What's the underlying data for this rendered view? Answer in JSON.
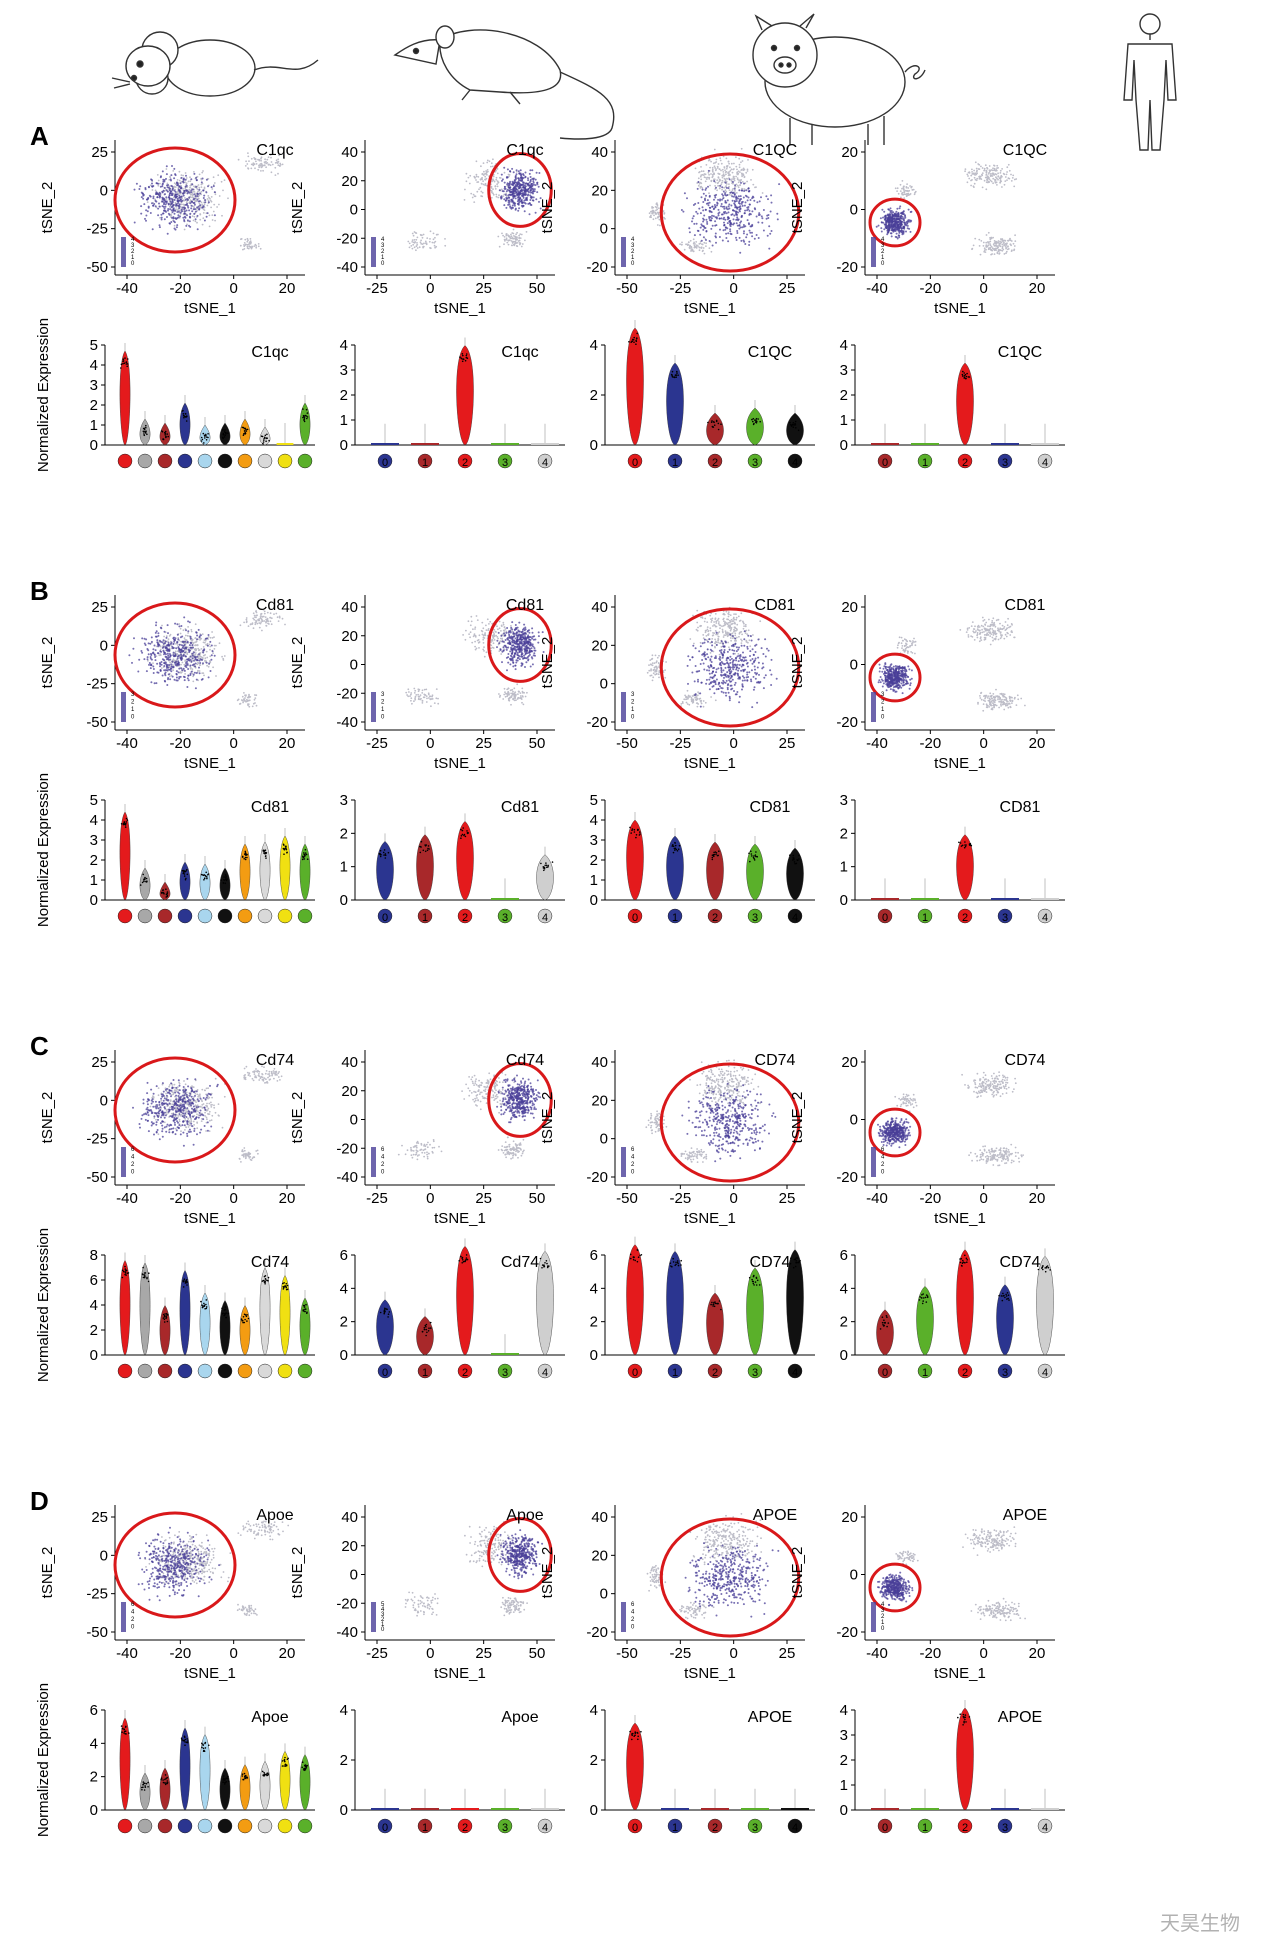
{
  "species_icons": [
    "mouse-icon",
    "rat-icon",
    "pig-icon",
    "human-icon"
  ],
  "panel_letters": [
    "A",
    "B",
    "C",
    "D"
  ],
  "axis_labels": {
    "x": "tSNE_1",
    "y": "tSNE_2",
    "violin_y": "Normalized Expression"
  },
  "colors": {
    "highlight": "#d9181a",
    "grey": "#c8c8c8",
    "purple": "#4a3f98",
    "mouse_clusters": [
      "#e41a1c",
      "#a8a8a8",
      "#a8282a",
      "#2b3590",
      "#a9d6ee",
      "#111111",
      "#f39c12",
      "#d9d9d9",
      "#f0e012",
      "#5ab02a"
    ],
    "rat_clusters": [
      "#2b3590",
      "#a8282a",
      "#e41a1c",
      "#5ab02a",
      "#cfcfcf"
    ],
    "pig_clusters": [
      "#e41a1c",
      "#2b3590",
      "#a8282a",
      "#5ab02a",
      "#111111"
    ],
    "human_clusters": [
      "#a8282a",
      "#5ab02a",
      "#e41a1c",
      "#2b3590",
      "#cfcfcf"
    ]
  },
  "cluster_labels": [
    "0",
    "1",
    "2",
    "3",
    "4"
  ],
  "chart_data": [
    {
      "panel": "A",
      "gene": "C1qc",
      "species": "mouse",
      "type": "scatter",
      "tsne_xticks": [
        "-40",
        "-20",
        "0",
        "20"
      ],
      "tsne_yticks": [
        "25",
        "0",
        "-25",
        "-50"
      ],
      "tsne_legend": [
        "4",
        "3",
        "2",
        "1",
        "0"
      ],
      "violin_yticks": [
        "5",
        "4",
        "3",
        "2",
        "1",
        "0"
      ],
      "violin_values": [
        4.1,
        0.7,
        0.5,
        1.5,
        0.4,
        0.5,
        0.7,
        0.3,
        0.1,
        1.5
      ]
    },
    {
      "panel": "A",
      "gene": "C1qc",
      "species": "rat",
      "type": "scatter",
      "tsne_xticks": [
        "-25",
        "0",
        "25",
        "50"
      ],
      "tsne_yticks": [
        "40",
        "20",
        "0",
        "-20",
        "-40"
      ],
      "tsne_legend": [
        "4",
        "3",
        "2",
        "1",
        "0"
      ],
      "violin_yticks": [
        "4",
        "3",
        "2",
        "1",
        "0"
      ],
      "violin_values": [
        0.05,
        0.05,
        3.5,
        0.05,
        0.05
      ]
    },
    {
      "panel": "A",
      "gene": "C1QC",
      "species": "pig",
      "type": "scatter",
      "tsne_xticks": [
        "-50",
        "-25",
        "0",
        "25"
      ],
      "tsne_yticks": [
        "40",
        "20",
        "0",
        "-20"
      ],
      "tsne_legend": [
        "4",
        "3",
        "2",
        "1",
        "0"
      ],
      "violin_yticks": [
        "4",
        "2",
        "0"
      ],
      "violin_values": [
        4.2,
        2.8,
        0.8,
        1.0,
        0.8
      ]
    },
    {
      "panel": "A",
      "gene": "C1QC",
      "species": "human",
      "type": "scatter",
      "tsne_xticks": [
        "-40",
        "-20",
        "0",
        "20"
      ],
      "tsne_yticks": [
        "20",
        "0",
        "-20"
      ],
      "tsne_legend": [
        "4",
        "3",
        "2",
        "1",
        "0"
      ],
      "violin_yticks": [
        "4",
        "3",
        "2",
        "1",
        "0"
      ],
      "violin_values": [
        0.05,
        0.05,
        2.8,
        0.05,
        0.05
      ]
    },
    {
      "panel": "B",
      "gene": "Cd81",
      "species": "mouse",
      "type": "scatter",
      "tsne_xticks": [
        "-40",
        "-20",
        "0",
        "20"
      ],
      "tsne_yticks": [
        "25",
        "0",
        "-25",
        "-50"
      ],
      "tsne_legend": [
        "3",
        "2",
        "1",
        "0"
      ],
      "violin_yticks": [
        "5",
        "4",
        "3",
        "2",
        "1",
        "0"
      ],
      "violin_values": [
        3.8,
        1.0,
        0.3,
        1.3,
        1.2,
        1.0,
        2.2,
        2.3,
        2.6,
        2.2
      ]
    },
    {
      "panel": "B",
      "gene": "Cd81",
      "species": "rat",
      "type": "scatter",
      "tsne_xticks": [
        "-25",
        "0",
        "25",
        "50"
      ],
      "tsne_yticks": [
        "40",
        "20",
        "0",
        "-20",
        "-40"
      ],
      "tsne_legend": [
        "3",
        "2",
        "1",
        "0"
      ],
      "violin_yticks": [
        "3",
        "2",
        "1",
        "0"
      ],
      "violin_values": [
        1.4,
        1.6,
        2.0,
        0.05,
        1.0
      ]
    },
    {
      "panel": "B",
      "gene": "CD81",
      "species": "pig",
      "type": "scatter",
      "tsne_xticks": [
        "-50",
        "-25",
        "0",
        "25"
      ],
      "tsne_yticks": [
        "40",
        "20",
        "0",
        "-20"
      ],
      "tsne_legend": [
        "3",
        "2",
        "1",
        "0"
      ],
      "violin_yticks": [
        "5",
        "4",
        "3",
        "2",
        "1",
        "0"
      ],
      "violin_values": [
        3.4,
        2.6,
        2.3,
        2.2,
        2.0
      ]
    },
    {
      "panel": "B",
      "gene": "CD81",
      "species": "human",
      "type": "scatter",
      "tsne_xticks": [
        "-40",
        "-20",
        "0",
        "20"
      ],
      "tsne_yticks": [
        "20",
        "0",
        "-20"
      ],
      "tsne_legend": [
        "3",
        "2",
        "1",
        "0"
      ],
      "violin_yticks": [
        "3",
        "2",
        "1",
        "0"
      ],
      "violin_values": [
        0.05,
        0.05,
        1.6,
        0.05,
        0.05
      ]
    },
    {
      "panel": "C",
      "gene": "Cd74",
      "species": "mouse",
      "type": "scatter",
      "tsne_xticks": [
        "-40",
        "-20",
        "0",
        "20"
      ],
      "tsne_yticks": [
        "25",
        "0",
        "-25",
        "-50"
      ],
      "tsne_legend": [
        "6",
        "4",
        "2",
        "0"
      ],
      "violin_yticks": [
        "8",
        "6",
        "4",
        "2",
        "0"
      ],
      "violin_values": [
        6.6,
        6.4,
        3.0,
        5.8,
        4.0,
        3.4,
        3.0,
        6.0,
        5.4,
        3.6
      ]
    },
    {
      "panel": "C",
      "gene": "Cd74",
      "species": "rat",
      "type": "scatter",
      "tsne_xticks": [
        "-25",
        "0",
        "25",
        "50"
      ],
      "tsne_yticks": [
        "40",
        "20",
        "0",
        "-20",
        "-40"
      ],
      "tsne_legend": [
        "6",
        "4",
        "2",
        "0"
      ],
      "violin_yticks": [
        "6",
        "4",
        "2",
        "0"
      ],
      "violin_values": [
        2.6,
        1.6,
        5.8,
        0.05,
        5.5
      ]
    },
    {
      "panel": "C",
      "gene": "CD74",
      "species": "pig",
      "type": "scatter",
      "tsne_xticks": [
        "-50",
        "-25",
        "0",
        "25"
      ],
      "tsne_yticks": [
        "40",
        "20",
        "0",
        "-20"
      ],
      "tsne_legend": [
        "6",
        "4",
        "2",
        "0"
      ],
      "violin_yticks": [
        "6",
        "4",
        "2",
        "0"
      ],
      "violin_values": [
        5.9,
        5.5,
        3.0,
        4.5,
        5.6
      ]
    },
    {
      "panel": "C",
      "gene": "CD74",
      "species": "human",
      "type": "scatter",
      "tsne_xticks": [
        "-40",
        "-20",
        "0",
        "20"
      ],
      "tsne_yticks": [
        "20",
        "0",
        "-20"
      ],
      "tsne_legend": [
        "6",
        "4",
        "2",
        "0"
      ],
      "violin_yticks": [
        "6",
        "4",
        "2",
        "0"
      ],
      "violin_values": [
        2.0,
        3.4,
        5.6,
        3.5,
        5.2
      ]
    },
    {
      "panel": "D",
      "gene": "Apoe",
      "species": "mouse",
      "type": "scatter",
      "tsne_xticks": [
        "-40",
        "-20",
        "0",
        "20"
      ],
      "tsne_yticks": [
        "25",
        "0",
        "-25",
        "-50"
      ],
      "tsne_legend": [
        "6",
        "4",
        "2",
        "0"
      ],
      "violin_yticks": [
        "6",
        "4",
        "2",
        "0"
      ],
      "violin_values": [
        4.8,
        1.5,
        1.8,
        4.2,
        3.8,
        1.8,
        2.0,
        2.2,
        2.8,
        2.6
      ]
    },
    {
      "panel": "D",
      "gene": "Apoe",
      "species": "rat",
      "type": "scatter",
      "tsne_xticks": [
        "-25",
        "0",
        "25",
        "50"
      ],
      "tsne_yticks": [
        "40",
        "20",
        "0",
        "-20",
        "-40"
      ],
      "tsne_legend": [
        "5",
        "4",
        "3",
        "2",
        "1",
        "0"
      ],
      "violin_yticks": [
        "4",
        "2",
        "0"
      ],
      "violin_values": [
        0.05,
        0.05,
        0.05,
        0.05,
        0.05
      ]
    },
    {
      "panel": "D",
      "gene": "APOE",
      "species": "pig",
      "type": "scatter",
      "tsne_xticks": [
        "-50",
        "-25",
        "0",
        "25"
      ],
      "tsne_yticks": [
        "40",
        "20",
        "0",
        "-20"
      ],
      "tsne_legend": [
        "6",
        "4",
        "2",
        "0"
      ],
      "violin_yticks": [
        "4",
        "2",
        "0"
      ],
      "violin_values": [
        3.0,
        0.05,
        0.05,
        0.05,
        0.05
      ]
    },
    {
      "panel": "D",
      "gene": "APOE",
      "species": "human",
      "type": "scatter",
      "tsne_xticks": [
        "-40",
        "-20",
        "0",
        "20"
      ],
      "tsne_yticks": [
        "20",
        "0",
        "-20"
      ],
      "tsne_legend": [
        "4",
        "3",
        "2",
        "1",
        "0"
      ],
      "violin_yticks": [
        "4",
        "3",
        "2",
        "1",
        "0"
      ],
      "violin_values": [
        0.05,
        0.05,
        3.6,
        0.05,
        0.05
      ]
    }
  ],
  "watermark": "天昊生物"
}
